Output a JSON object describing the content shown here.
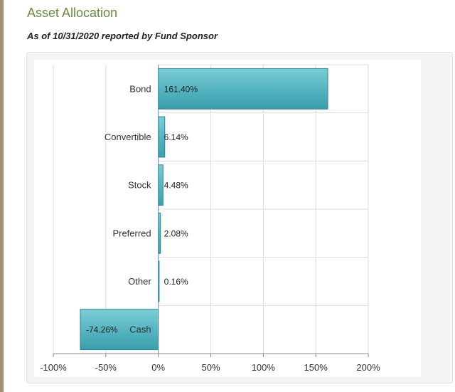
{
  "header": {
    "title": "Asset Allocation",
    "subtitle": "As of 10/31/2020 reported by Fund Sponsor"
  },
  "chart_data": {
    "type": "bar",
    "orientation": "horizontal",
    "categories": [
      "Bond",
      "Convertible",
      "Stock",
      "Preferred",
      "Other",
      "Cash"
    ],
    "values": [
      161.4,
      6.14,
      4.48,
      2.08,
      0.16,
      -74.26
    ],
    "value_labels": [
      "161.40%",
      "6.14%",
      "4.48%",
      "2.08%",
      "0.16%",
      "-74.26%"
    ],
    "xlim": [
      -100,
      200
    ],
    "xticks": [
      -100,
      -50,
      0,
      50,
      100,
      150,
      200
    ],
    "xtick_labels": [
      "-100%",
      "-50%",
      "0%",
      "50%",
      "100%",
      "150%",
      "200%"
    ],
    "title": "",
    "xlabel": "",
    "ylabel": "",
    "grid": true,
    "legend": "none",
    "colors": {
      "bar": "#4fb0bc",
      "bar_edge": "#2d8593",
      "grid": "#dddddd",
      "axis": "#888888"
    }
  }
}
